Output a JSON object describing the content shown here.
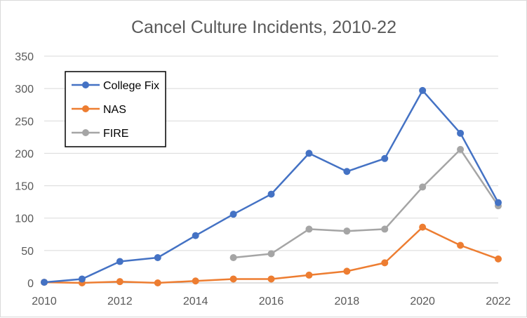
{
  "chart_data": {
    "type": "line",
    "title": "Cancel Culture Incidents, 2010-22",
    "xlabel": "",
    "ylabel": "",
    "xlim": [
      2010,
      2022
    ],
    "ylim": [
      0,
      350
    ],
    "x_ticks": [
      2010,
      2012,
      2014,
      2016,
      2018,
      2020,
      2022
    ],
    "x_tick_labels": [
      "2010",
      "2012",
      "2014",
      "2016",
      "2018",
      "2020",
      "2022"
    ],
    "y_ticks": [
      0,
      50,
      100,
      150,
      200,
      250,
      300,
      350
    ],
    "y_tick_labels": [
      "0",
      "50",
      "100",
      "150",
      "200",
      "250",
      "300",
      "350"
    ],
    "grid": "horizontal",
    "legend_position": "top-left",
    "series": [
      {
        "name": "College Fix",
        "color": "#4472c4",
        "x": [
          2010,
          2011,
          2012,
          2013,
          2014,
          2015,
          2016,
          2017,
          2018,
          2019,
          2020,
          2021,
          2022
        ],
        "values": [
          1,
          6,
          33,
          39,
          73,
          106,
          137,
          200,
          172,
          192,
          297,
          231,
          124
        ]
      },
      {
        "name": "NAS",
        "color": "#ed7d31",
        "x": [
          2010,
          2011,
          2012,
          2013,
          2014,
          2015,
          2016,
          2017,
          2018,
          2019,
          2020,
          2021,
          2022
        ],
        "values": [
          1,
          0,
          2,
          0,
          3,
          6,
          6,
          12,
          18,
          31,
          86,
          58,
          37
        ]
      },
      {
        "name": "FIRE",
        "color": "#a5a5a5",
        "x": [
          2015,
          2016,
          2017,
          2018,
          2019,
          2020,
          2021,
          2022
        ],
        "values": [
          39,
          45,
          83,
          80,
          83,
          148,
          206,
          119
        ]
      }
    ]
  }
}
